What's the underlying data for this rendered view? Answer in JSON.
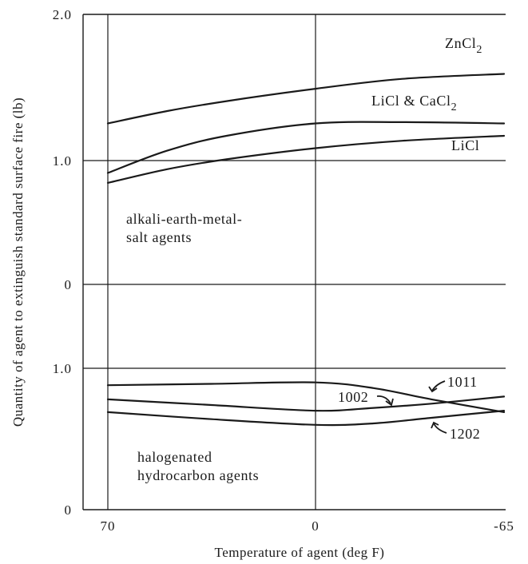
{
  "chart_data": [
    {
      "type": "line",
      "panel": "alkali-earth-metal-salt agents",
      "xlabel": "Temperature of agent (deg F)",
      "ylabel": "Quantity of agent to extinguish standard surface fire (lb)",
      "x_ticks": [
        "70",
        "0",
        "-65"
      ],
      "y_ticks": [
        "0",
        "1.0",
        "2.0"
      ],
      "xlim": [
        70,
        -65
      ],
      "ylim": [
        0,
        2.0
      ],
      "annotation": "alkali-earth-metal-salt agents",
      "series": [
        {
          "name": "ZnCl2",
          "x": [
            70,
            50,
            30,
            0,
            -30,
            -65
          ],
          "y": [
            1.3,
            1.4,
            1.48,
            1.58,
            1.66,
            1.7
          ]
        },
        {
          "name": "LiCl & CaCl2",
          "x": [
            70,
            50,
            30,
            0,
            -30,
            -65
          ],
          "y": [
            0.9,
            1.08,
            1.2,
            1.3,
            1.31,
            1.3
          ]
        },
        {
          "name": "LiCl",
          "x": [
            70,
            50,
            30,
            0,
            -30,
            -65
          ],
          "y": [
            0.82,
            0.93,
            1.01,
            1.1,
            1.16,
            1.2
          ]
        }
      ]
    },
    {
      "type": "line",
      "panel": "halogenated hydrocarbon agents",
      "x_ticks": [
        "70",
        "0",
        "-65"
      ],
      "y_ticks": [
        "0",
        "1.0"
      ],
      "xlim": [
        70,
        -65
      ],
      "ylim": [
        0,
        1.0
      ],
      "annotation": "halogenated hydrocarbon agents",
      "series": [
        {
          "name": "1011",
          "x": [
            70,
            35,
            0,
            -20,
            -40,
            -65
          ],
          "y": [
            0.88,
            0.89,
            0.9,
            0.86,
            0.78,
            0.69
          ]
        },
        {
          "name": "1002",
          "x": [
            70,
            35,
            0,
            -20,
            -40,
            -65
          ],
          "y": [
            0.78,
            0.74,
            0.7,
            0.72,
            0.75,
            0.8
          ]
        },
        {
          "name": "1202",
          "x": [
            70,
            35,
            0,
            -20,
            -40,
            -65
          ],
          "y": [
            0.69,
            0.64,
            0.6,
            0.61,
            0.65,
            0.7
          ]
        }
      ]
    }
  ],
  "labels": {
    "zncl2_main": "ZnCl",
    "zncl2_sub": "2",
    "licl_cacl2_main": "LiCl & CaCl",
    "licl_cacl2_sub": "2",
    "licl": "LiCl",
    "alkali_line1": "alkali-earth-metal-",
    "alkali_line2": "salt agents",
    "halogen_line1": "halogenated",
    "halogen_line2": "hydrocarbon agents",
    "agent_1011": "1011",
    "agent_1002": "1002",
    "agent_1202": "1202"
  }
}
